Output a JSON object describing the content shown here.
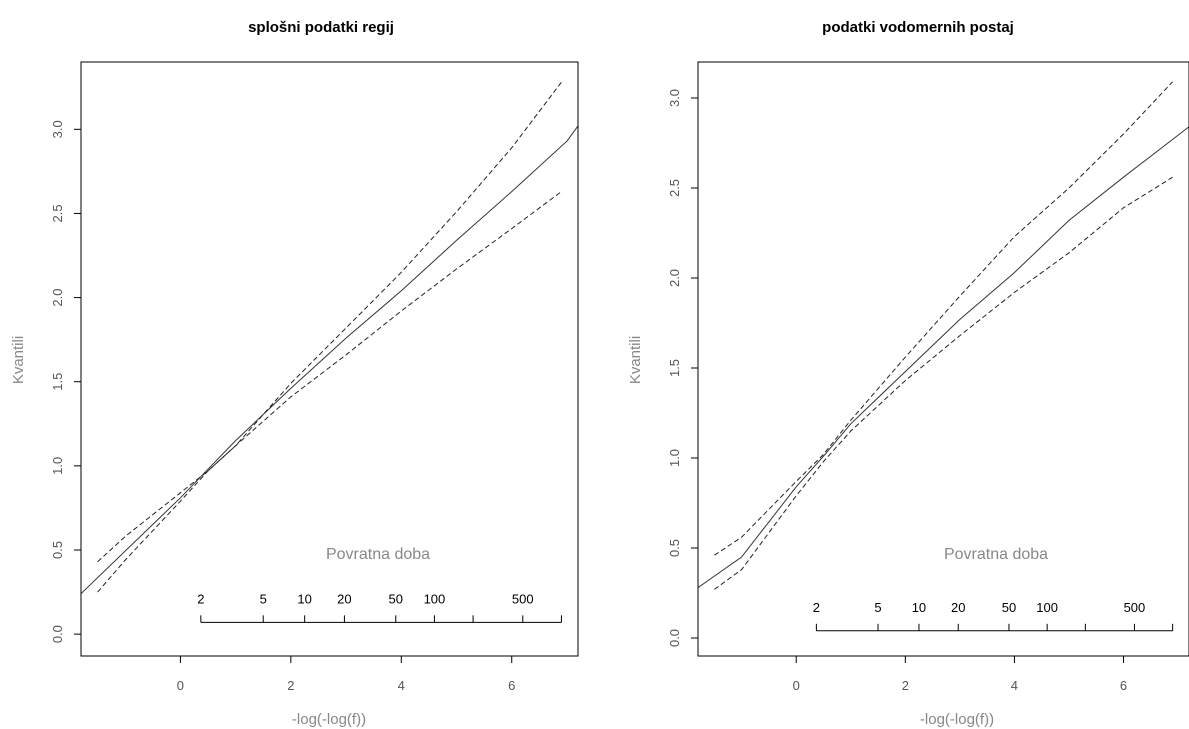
{
  "chart_data": [
    {
      "type": "line",
      "title": "splošni podatki regij",
      "xlabel": "-log(-log(f))",
      "ylabel": "Kvantili",
      "xlim": [
        -1.8,
        7.2
      ],
      "ylim": [
        -0.13,
        3.4
      ],
      "xticks": [
        0,
        2,
        4,
        6
      ],
      "yticks": [
        0.0,
        0.5,
        1.0,
        1.5,
        2.0,
        2.5,
        3.0
      ],
      "ytick_labels": [
        "0.0",
        "0.5",
        "1.0",
        "1.5",
        "2.0",
        "2.5",
        "3.0"
      ],
      "grid": false,
      "series": [
        {
          "style": "solid",
          "x": [
            -1.8,
            0,
            0.5,
            1,
            2,
            3,
            4,
            5,
            6,
            7,
            7.2
          ],
          "y": [
            0.24,
            0.81,
            0.98,
            1.15,
            1.46,
            1.76,
            2.04,
            2.34,
            2.63,
            2.93,
            3.02
          ]
        },
        {
          "style": "dashed",
          "x": [
            -1.5,
            -1,
            0,
            0.5,
            1,
            2,
            3,
            4,
            5,
            6,
            6.9
          ],
          "y": [
            0.43,
            0.58,
            0.84,
            0.97,
            1.12,
            1.49,
            1.82,
            2.15,
            2.51,
            2.89,
            3.28
          ]
        },
        {
          "style": "dashed",
          "x": [
            -1.5,
            -1,
            0,
            0.5,
            1,
            2,
            3,
            4,
            5,
            6,
            6.9
          ],
          "y": [
            0.25,
            0.44,
            0.79,
            0.97,
            1.12,
            1.41,
            1.66,
            1.92,
            2.17,
            2.41,
            2.63
          ]
        }
      ],
      "return_period_axis": {
        "title": "Povratna doba",
        "baseline_y": 0.07,
        "ticks": [
          0.37,
          1.5,
          2.25,
          2.97,
          3.9,
          4.6,
          5.3,
          6.2,
          6.9
        ],
        "labels": [
          {
            "text": "2",
            "x": 0.37
          },
          {
            "text": "5",
            "x": 1.5
          },
          {
            "text": "10",
            "x": 2.25
          },
          {
            "text": "20",
            "x": 2.97
          },
          {
            "text": "50",
            "x": 3.9
          },
          {
            "text": "100",
            "x": 4.6
          },
          {
            "text": "500",
            "x": 6.2
          }
        ]
      }
    },
    {
      "type": "line",
      "title": "podatki vodomernih postaj",
      "xlabel": "-log(-log(f))",
      "ylabel": "Kvantili",
      "xlim": [
        -1.8,
        7.2
      ],
      "ylim": [
        -0.1,
        3.2
      ],
      "xticks": [
        0,
        2,
        4,
        6
      ],
      "yticks": [
        0.0,
        0.5,
        1.0,
        1.5,
        2.0,
        2.5,
        3.0
      ],
      "ytick_labels": [
        "0.0",
        "0.5",
        "1.0",
        "1.5",
        "2.0",
        "2.5",
        "3.0"
      ],
      "grid": false,
      "series": [
        {
          "style": "solid",
          "x": [
            -1.8,
            -1,
            0,
            0.5,
            1,
            2,
            3,
            4,
            5,
            6,
            7.2
          ],
          "y": [
            0.28,
            0.45,
            0.84,
            1.01,
            1.19,
            1.48,
            1.77,
            2.03,
            2.32,
            2.56,
            2.84
          ]
        },
        {
          "style": "dashed",
          "x": [
            -1.5,
            -1,
            0,
            0.5,
            1,
            2,
            3,
            4,
            5,
            6,
            6.9
          ],
          "y": [
            0.46,
            0.56,
            0.87,
            1.02,
            1.21,
            1.56,
            1.9,
            2.23,
            2.5,
            2.8,
            3.09
          ]
        },
        {
          "style": "dashed",
          "x": [
            -1.5,
            -1,
            0,
            0.5,
            1,
            2,
            3,
            4,
            5,
            6,
            6.9
          ],
          "y": [
            0.27,
            0.38,
            0.79,
            0.98,
            1.15,
            1.43,
            1.68,
            1.92,
            2.14,
            2.39,
            2.56
          ]
        }
      ],
      "return_period_axis": {
        "title": "Povratna doba",
        "baseline_y": 0.04,
        "ticks": [
          0.37,
          1.5,
          2.25,
          2.97,
          3.9,
          4.6,
          5.3,
          6.2,
          6.9
        ],
        "labels": [
          {
            "text": "2",
            "x": 0.37
          },
          {
            "text": "5",
            "x": 1.5
          },
          {
            "text": "10",
            "x": 2.25
          },
          {
            "text": "20",
            "x": 2.97
          },
          {
            "text": "50",
            "x": 3.9
          },
          {
            "text": "100",
            "x": 4.6
          },
          {
            "text": "500",
            "x": 6.2
          }
        ]
      }
    }
  ]
}
